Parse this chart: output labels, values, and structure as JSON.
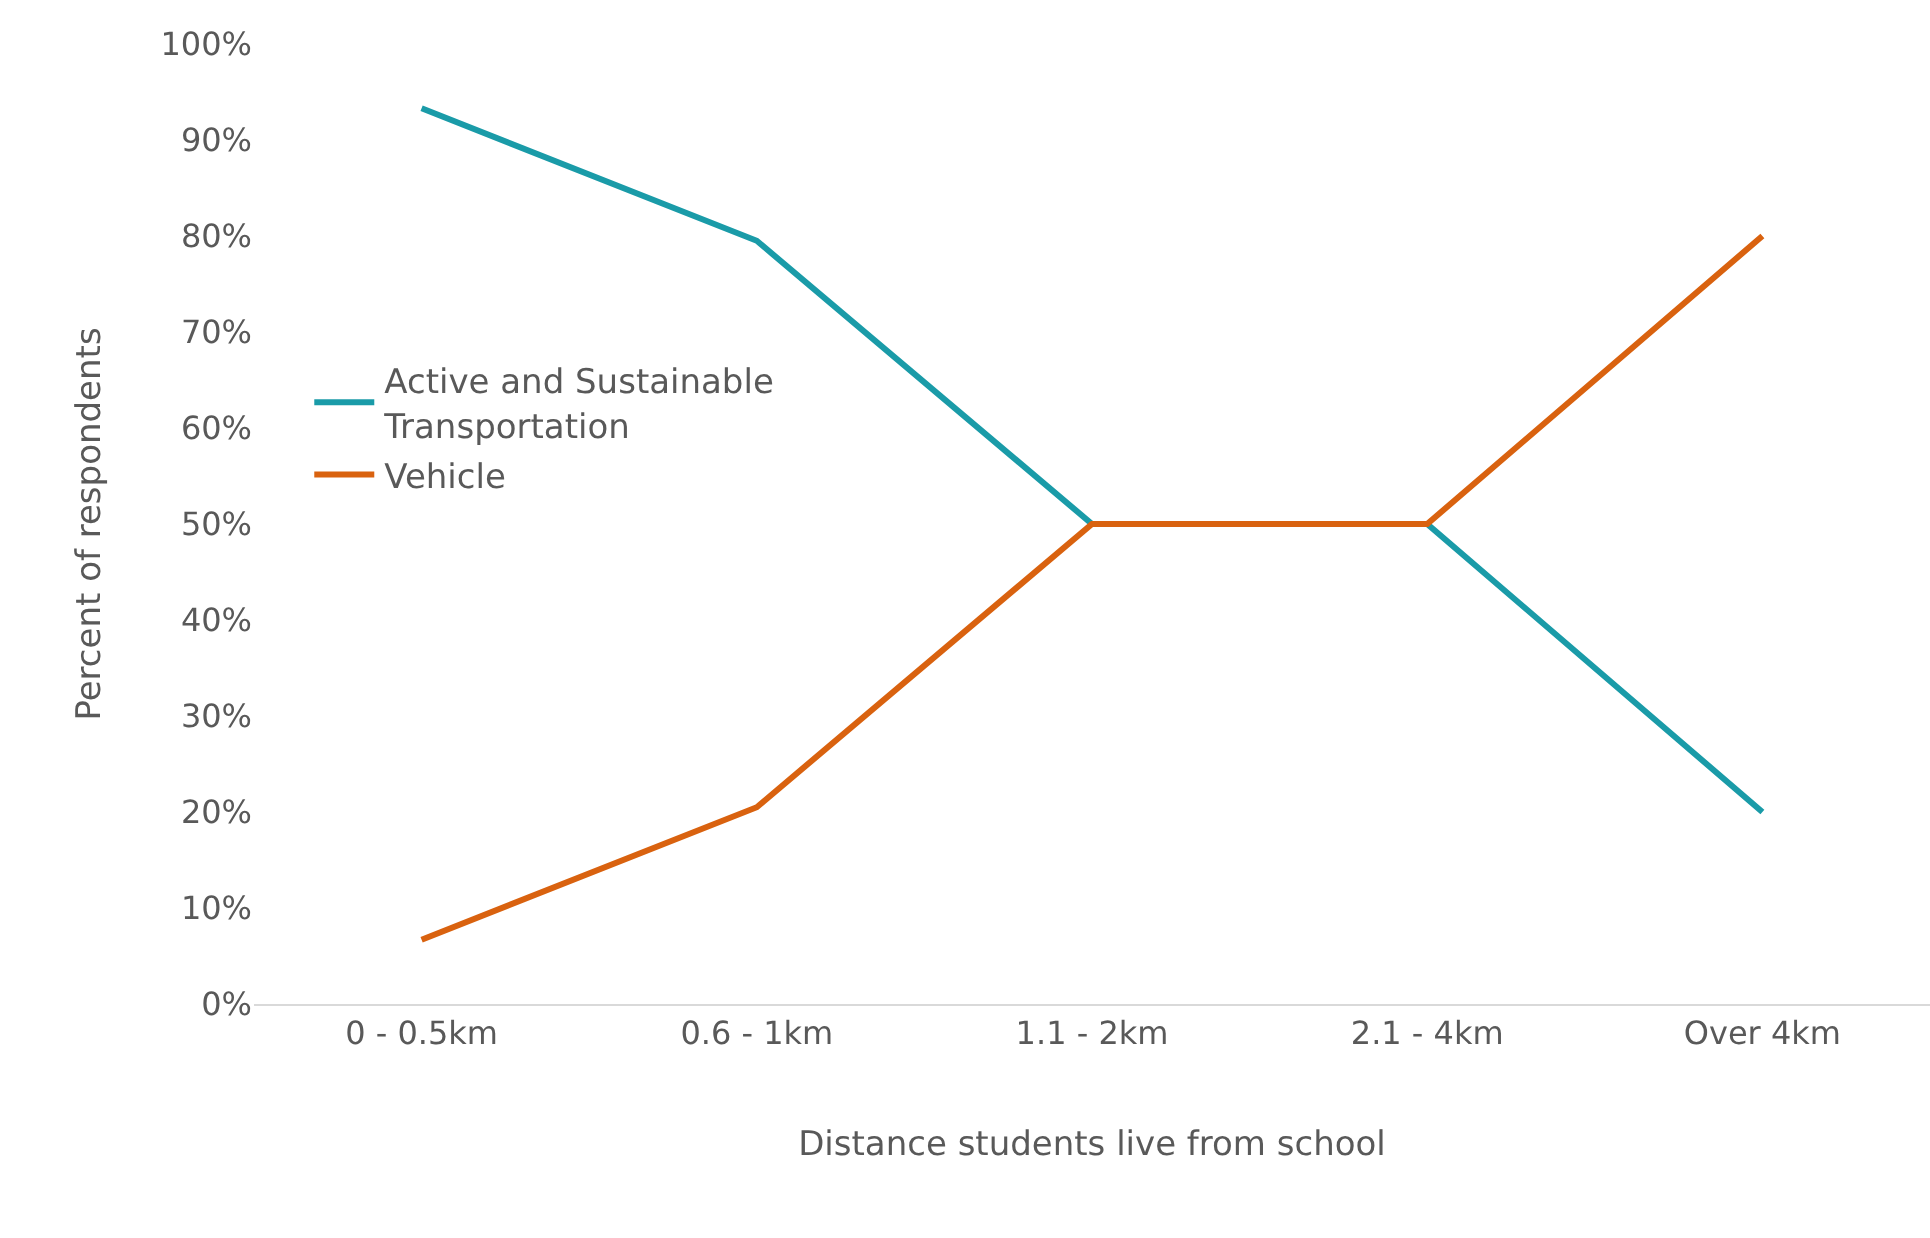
{
  "chart_data": {
    "type": "line",
    "xlabel": "Distance students live from school",
    "ylabel": "Percent of respondents",
    "categories": [
      "0 - 0.5km",
      "0.6 - 1km",
      "1.1 - 2km",
      "2.1 - 4km",
      "Over 4km"
    ],
    "series": [
      {
        "name": "Active and Sustainable Transportation",
        "color": "#1a9ba8",
        "values": [
          93.3,
          79.5,
          50,
          50,
          20
        ]
      },
      {
        "name": "Vehicle",
        "color": "#d9620f",
        "values": [
          6.7,
          20.5,
          50,
          50,
          80
        ]
      }
    ],
    "ylim": [
      0,
      100
    ],
    "yticks": [
      {
        "value": 0,
        "label": "0%"
      },
      {
        "value": 10,
        "label": "10%"
      },
      {
        "value": 20,
        "label": "20%"
      },
      {
        "value": 30,
        "label": "30%"
      },
      {
        "value": 40,
        "label": "40%"
      },
      {
        "value": 50,
        "label": "50%"
      },
      {
        "value": 60,
        "label": "60%"
      },
      {
        "value": 70,
        "label": "70%"
      },
      {
        "value": 80,
        "label": "80%"
      },
      {
        "value": 90,
        "label": "90%"
      },
      {
        "value": 100,
        "label": "100%"
      }
    ],
    "legend": "left",
    "marker": "none",
    "line_style": "solid"
  }
}
